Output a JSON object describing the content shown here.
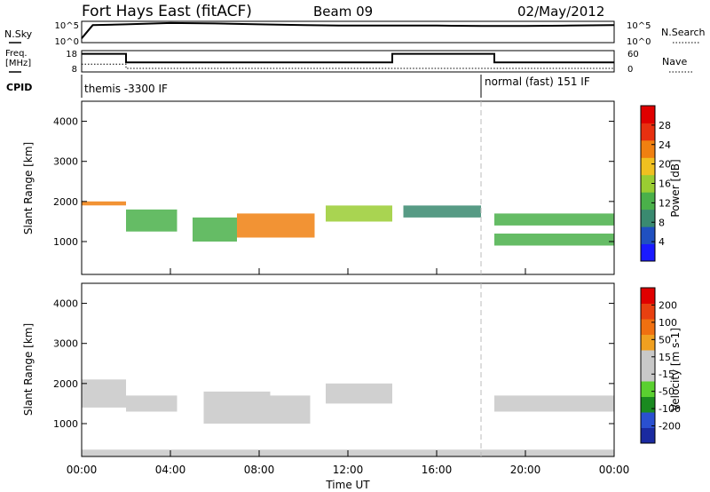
{
  "header": {
    "station": "Fort Hays East (fitACF)",
    "beam": "Beam 09",
    "date": "02/May/2012"
  },
  "labels": {
    "nsky": "N.Sky",
    "nsearch": "N.Search",
    "freq_line1": "Freq.",
    "freq_line2": "[MHz]",
    "nave": "Nave",
    "cpid": "CPID"
  },
  "cpid": [
    {
      "name": "themis -3300 IF",
      "start_hour": 0,
      "end_hour": 18.0
    },
    {
      "name": "normal (fast) 151 IF",
      "start_hour": 18.0,
      "end_hour": 24
    }
  ],
  "colors": {
    "power_scale": [
      "#1a1aff",
      "#2050c0",
      "#3a8a70",
      "#4ab04a",
      "#9acd32",
      "#f0c020",
      "#f08010",
      "#e83010",
      "#e00000"
    ],
    "velocity_scale": [
      "#1a2aa0",
      "#2a50d0",
      "#1a8a20",
      "#5ad030",
      "#c8c8c8",
      "#c8c8c8",
      "#f0a020",
      "#f07010",
      "#e84010",
      "#e00000"
    ]
  },
  "chart_data": [
    {
      "type": "line",
      "name": "N.Sky / N.Search",
      "ylabel_left": "N.Sky",
      "ylabel_right": "N.Search",
      "ylim_left": [
        "10^0",
        "10^5"
      ],
      "ylim_right": [
        "10^0",
        "10^5"
      ],
      "ticks_left": [
        "10^5",
        "10^0"
      ],
      "ticks_right": [
        "10^5",
        "10^0"
      ],
      "x": [
        0,
        0.5,
        2,
        4,
        6,
        8,
        10,
        12,
        14,
        16,
        18,
        20,
        22,
        24
      ],
      "values_log10": [
        1,
        4.1,
        4.3,
        4.6,
        4.5,
        4.3,
        4.1,
        4.0,
        4.0,
        4.0,
        3.9,
        3.9,
        4.0,
        4.1
      ],
      "xlim": [
        0,
        24
      ]
    },
    {
      "type": "line",
      "name": "Freq / Nave",
      "ylabel_left": "Freq. [MHz]",
      "ylabel_right": "Nave",
      "ticks_left": [
        "18",
        "8"
      ],
      "ticks_right": [
        "60",
        "0"
      ],
      "series": [
        {
          "x": [
            0,
            2,
            2,
            14,
            14,
            18.6,
            18.6,
            24
          ],
          "values": [
            16.5,
            16.5,
            12.5,
            12.5,
            16.5,
            16.5,
            12.5,
            12.5
          ]
        },
        {
          "x": [
            0,
            2,
            2,
            24
          ],
          "values": [
            22,
            22,
            10,
            10
          ]
        }
      ],
      "xlim": [
        0,
        24
      ]
    },
    {
      "type": "heatmap",
      "name": "Power",
      "ylabel": "Slant Range [km]",
      "ylim": [
        180,
        4500
      ],
      "yticks": [
        "4000",
        "3000",
        "2000",
        "1000"
      ],
      "colorbar_label": "Power [dB]",
      "colorbar_ticks": [
        "28",
        "24",
        "20",
        "16",
        "12",
        "8",
        "4"
      ],
      "colorbar_range": [
        0,
        32
      ],
      "xlim": [
        0,
        24
      ],
      "bands": [
        {
          "x_start": 0,
          "x_end": 2,
          "range_start": 1900,
          "range_end": 2000,
          "value": 22
        },
        {
          "x_start": 2,
          "x_end": 4.3,
          "range_start": 1250,
          "range_end": 1800,
          "value": 14
        },
        {
          "x_start": 5,
          "x_end": 7,
          "range_start": 1000,
          "range_end": 1600,
          "value": 14
        },
        {
          "x_start": 7,
          "x_end": 10.5,
          "range_start": 1100,
          "range_end": 1700,
          "value": 22
        },
        {
          "x_start": 11,
          "x_end": 14,
          "range_start": 1500,
          "range_end": 1900,
          "value": 16
        },
        {
          "x_start": 14.5,
          "x_end": 18,
          "range_start": 1600,
          "range_end": 1900,
          "value": 8
        },
        {
          "x_start": 18.6,
          "x_end": 24,
          "range_start": 1400,
          "range_end": 1700,
          "value": 14
        },
        {
          "x_start": 18.6,
          "x_end": 24,
          "range_start": 900,
          "range_end": 1200,
          "value": 12
        }
      ]
    },
    {
      "type": "heatmap",
      "name": "Velocity",
      "ylabel": "Slant Range [km]",
      "ylim": [
        180,
        4500
      ],
      "yticks": [
        "4000",
        "3000",
        "2000",
        "1000"
      ],
      "colorbar_label": "Velocity [m s-1]",
      "colorbar_ticks": [
        "200",
        "100",
        "50",
        "15",
        "-15",
        "-50",
        "-100",
        "-200"
      ],
      "colorbar_range": [
        -250,
        250
      ],
      "xlim": [
        0,
        24
      ],
      "bands": [
        {
          "x_start": 0,
          "x_end": 2,
          "range_start": 1400,
          "range_end": 2100,
          "value": 0
        },
        {
          "x_start": 2,
          "x_end": 4.3,
          "range_start": 1300,
          "range_end": 1700,
          "value": 0
        },
        {
          "x_start": 5.5,
          "x_end": 8.5,
          "range_start": 1000,
          "range_end": 1800,
          "value": 30
        },
        {
          "x_start": 8.5,
          "x_end": 10.3,
          "range_start": 1000,
          "range_end": 1700,
          "value": -40
        },
        {
          "x_start": 11,
          "x_end": 14,
          "range_start": 1500,
          "range_end": 2000,
          "value": 0
        },
        {
          "x_start": 18.6,
          "x_end": 24,
          "range_start": 1300,
          "range_end": 1700,
          "value": 0
        },
        {
          "x_start": 0,
          "x_end": 24,
          "range_start": 180,
          "range_end": 350,
          "value": -40
        }
      ]
    }
  ],
  "xaxis": {
    "ticks": [
      "00:00",
      "04:00",
      "08:00",
      "12:00",
      "16:00",
      "20:00",
      "00:00"
    ],
    "label": "Time UT"
  }
}
